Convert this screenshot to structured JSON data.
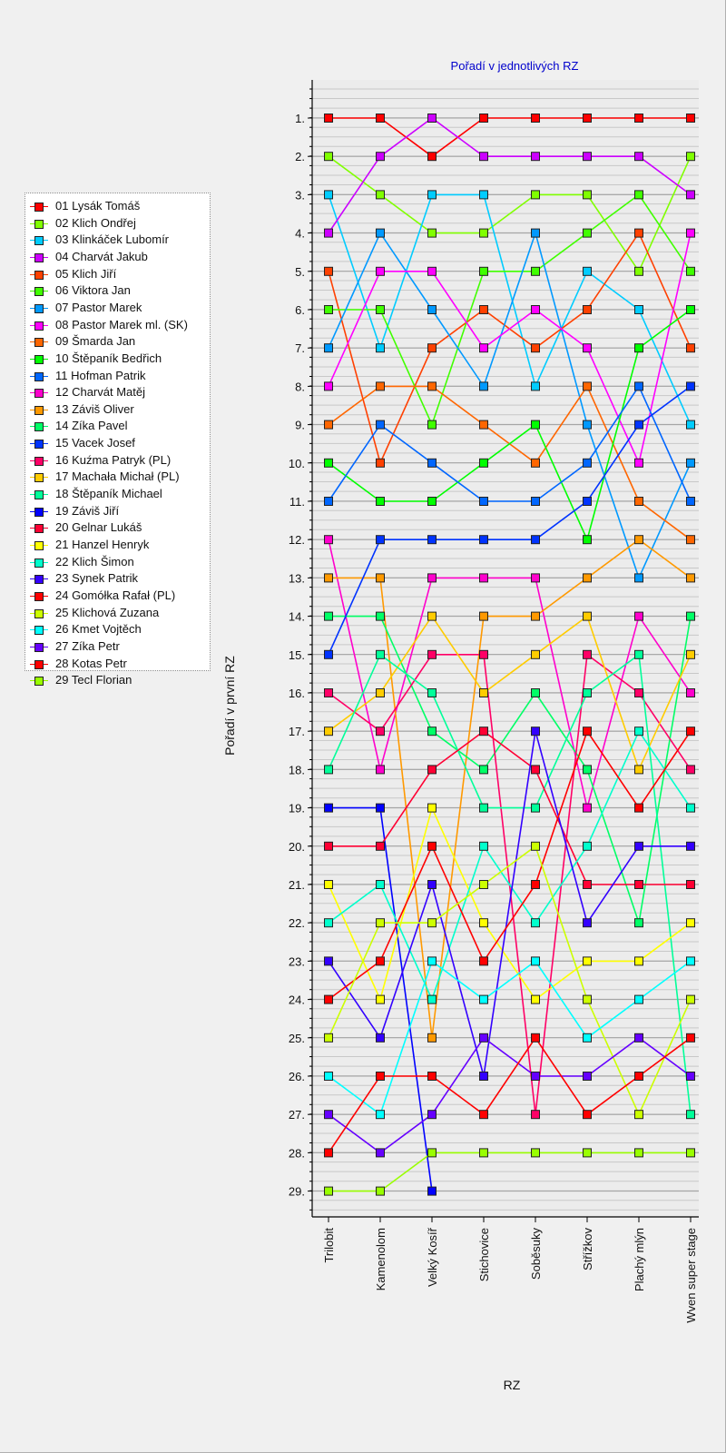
{
  "chart_data": {
    "type": "line",
    "title": "Pořadí v jednotlivých RZ",
    "xlabel": "RZ",
    "ylabel": "Pořadí v první RZ",
    "categories": [
      "Trilobit",
      "Kamenolom",
      "Velký Kosíř",
      "Stichovice",
      "Soběsuky",
      "Střížkov",
      "Plachý mlýn",
      "Wven super stage"
    ],
    "y_axis": {
      "inverted": true,
      "min": 1,
      "max": 29,
      "tick_suffix": "."
    },
    "grid": true,
    "legend_position": "left",
    "series": [
      {
        "name": "01 Lysák Tomáš",
        "color": "#ff0000",
        "values": [
          1,
          1,
          2,
          1,
          1,
          1,
          1,
          1
        ]
      },
      {
        "name": "02 Klich Ondřej",
        "color": "#80ff00",
        "values": [
          2,
          3,
          4,
          4,
          3,
          3,
          5,
          2
        ]
      },
      {
        "name": "03 Klinkáček Lubomír",
        "color": "#00ccff",
        "values": [
          3,
          7,
          3,
          3,
          8,
          5,
          6,
          9
        ]
      },
      {
        "name": "04 Charvát Jakub",
        "color": "#cc00ff",
        "values": [
          4,
          2,
          1,
          2,
          2,
          2,
          2,
          3
        ]
      },
      {
        "name": "05 Klich Jiří",
        "color": "#ff4000",
        "values": [
          5,
          10,
          7,
          6,
          7,
          6,
          4,
          7
        ]
      },
      {
        "name": "06 Viktora Jan",
        "color": "#40ff00",
        "values": [
          6,
          6,
          9,
          5,
          5,
          4,
          3,
          5
        ]
      },
      {
        "name": "07 Pastor Marek",
        "color": "#0099ff",
        "values": [
          7,
          4,
          6,
          8,
          4,
          9,
          13,
          10
        ]
      },
      {
        "name": "08 Pastor Marek ml. (SK)",
        "color": "#ff00ff",
        "values": [
          8,
          5,
          5,
          7,
          6,
          7,
          10,
          4
        ]
      },
      {
        "name": "09 Šmarda Jan",
        "color": "#ff6600",
        "values": [
          9,
          8,
          8,
          9,
          10,
          8,
          11,
          12
        ]
      },
      {
        "name": "10 Štěpaník Bedřich",
        "color": "#00ff00",
        "values": [
          10,
          11,
          11,
          10,
          9,
          12,
          7,
          6
        ]
      },
      {
        "name": "11 Hofman Patrik",
        "color": "#0066ff",
        "values": [
          11,
          9,
          10,
          11,
          11,
          10,
          8,
          11
        ]
      },
      {
        "name": "12 Charvát Matěj",
        "color": "#ff00cc",
        "values": [
          12,
          18,
          13,
          13,
          13,
          19,
          14,
          16
        ]
      },
      {
        "name": "13 Záviš Oliver",
        "color": "#ff9900",
        "values": [
          13,
          13,
          25,
          14,
          14,
          13,
          12,
          13
        ]
      },
      {
        "name": "14 Zíka Pavel",
        "color": "#00ff66",
        "values": [
          14,
          14,
          17,
          18,
          16,
          18,
          22,
          14
        ]
      },
      {
        "name": "15 Vacek Josef",
        "color": "#0033ff",
        "values": [
          15,
          12,
          12,
          12,
          12,
          11,
          9,
          8
        ]
      },
      {
        "name": "16 Kuźma Patryk (PL)",
        "color": "#ff0066",
        "values": [
          16,
          17,
          15,
          15,
          27,
          15,
          16,
          18
        ]
      },
      {
        "name": "17 Machała Michał (PL)",
        "color": "#ffcc00",
        "values": [
          17,
          16,
          14,
          16,
          15,
          14,
          18,
          15
        ]
      },
      {
        "name": "18 Štěpaník Michael",
        "color": "#00ff99",
        "values": [
          18,
          15,
          16,
          19,
          19,
          16,
          15,
          27
        ]
      },
      {
        "name": "19 Záviš Jiří",
        "color": "#0000ff",
        "values": [
          19,
          19,
          29,
          null,
          null,
          null,
          null,
          null
        ]
      },
      {
        "name": "20 Gelnar Lukáš",
        "color": "#ff0033",
        "values": [
          20,
          20,
          18,
          17,
          18,
          21,
          21,
          21
        ]
      },
      {
        "name": "21 Hanzel Henryk",
        "color": "#ffff00",
        "values": [
          21,
          24,
          19,
          22,
          24,
          23,
          23,
          22
        ]
      },
      {
        "name": "22 Klich Šimon",
        "color": "#00ffcc",
        "values": [
          22,
          21,
          24,
          20,
          22,
          20,
          17,
          19
        ]
      },
      {
        "name": "23 Synek Patrik",
        "color": "#3300ff",
        "values": [
          23,
          25,
          21,
          26,
          17,
          22,
          20,
          20
        ]
      },
      {
        "name": "24 Gomółka Rafał (PL)",
        "color": "#ff0000",
        "values": [
          24,
          23,
          20,
          23,
          21,
          17,
          19,
          17
        ]
      },
      {
        "name": "25 Klichová Zuzana",
        "color": "#ccff00",
        "values": [
          25,
          22,
          22,
          21,
          20,
          24,
          27,
          24
        ]
      },
      {
        "name": "26 Kmet Vojtěch",
        "color": "#00ffff",
        "values": [
          26,
          27,
          23,
          24,
          23,
          25,
          24,
          23
        ]
      },
      {
        "name": "27 Zíka Petr",
        "color": "#6600ff",
        "values": [
          27,
          28,
          27,
          25,
          26,
          26,
          25,
          26
        ]
      },
      {
        "name": "28 Kotas Petr",
        "color": "#ff0000",
        "values": [
          28,
          26,
          26,
          27,
          25,
          27,
          26,
          25
        ]
      },
      {
        "name": "29 Tecl Florian",
        "color": "#99ff00",
        "values": [
          29,
          29,
          28,
          28,
          28,
          28,
          28,
          28
        ]
      }
    ]
  }
}
